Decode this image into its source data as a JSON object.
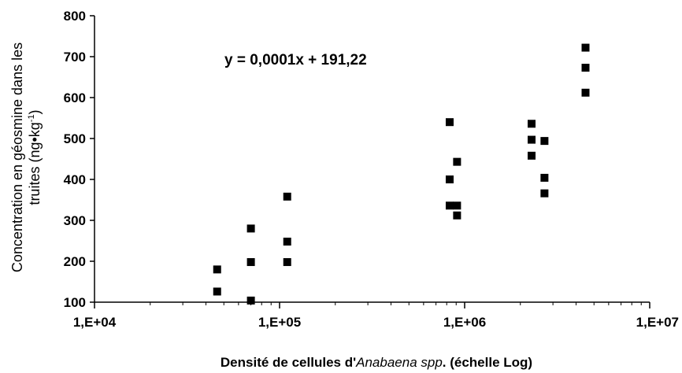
{
  "chart_data": {
    "type": "scatter",
    "x_scale": "log",
    "xlim": [
      10000,
      10000000
    ],
    "ylim": [
      100,
      800
    ],
    "x_ticks": [
      {
        "value": 10000,
        "label": "1,E+04"
      },
      {
        "value": 100000,
        "label": "1,E+05"
      },
      {
        "value": 1000000,
        "label": "1,E+06"
      },
      {
        "value": 10000000,
        "label": "1,E+07"
      }
    ],
    "y_ticks": [
      {
        "value": 100,
        "label": "100"
      },
      {
        "value": 200,
        "label": "200"
      },
      {
        "value": 300,
        "label": "300"
      },
      {
        "value": 400,
        "label": "400"
      },
      {
        "value": 500,
        "label": "500"
      },
      {
        "value": 600,
        "label": "600"
      },
      {
        "value": 700,
        "label": "700"
      },
      {
        "value": 800,
        "label": "800"
      }
    ],
    "grid": false,
    "marker": "square",
    "marker_color": "#000000",
    "annotation": "y = 0,0001x + 191,22",
    "xlabel": {
      "prefix": "Densité de cellules d'",
      "italic": "Anabaena spp",
      "suffix": ". (échelle Log)"
    },
    "ylabel": {
      "line1": "Concentration en géosmine dans les",
      "line2_prefix": "truites (ng•kg",
      "line2_sup": "-1",
      "line2_suffix": ")"
    },
    "points": [
      {
        "x": 46000,
        "y": 180
      },
      {
        "x": 46000,
        "y": 126
      },
      {
        "x": 70000,
        "y": 280
      },
      {
        "x": 70000,
        "y": 198
      },
      {
        "x": 70000,
        "y": 104
      },
      {
        "x": 110000,
        "y": 358
      },
      {
        "x": 110000,
        "y": 248
      },
      {
        "x": 110000,
        "y": 198
      },
      {
        "x": 830000,
        "y": 540
      },
      {
        "x": 830000,
        "y": 400
      },
      {
        "x": 830000,
        "y": 336
      },
      {
        "x": 910000,
        "y": 443
      },
      {
        "x": 910000,
        "y": 336
      },
      {
        "x": 910000,
        "y": 312
      },
      {
        "x": 2300000,
        "y": 536
      },
      {
        "x": 2300000,
        "y": 497
      },
      {
        "x": 2300000,
        "y": 458
      },
      {
        "x": 2700000,
        "y": 494
      },
      {
        "x": 2700000,
        "y": 404
      },
      {
        "x": 2700000,
        "y": 366
      },
      {
        "x": 4500000,
        "y": 722
      },
      {
        "x": 4500000,
        "y": 673
      },
      {
        "x": 4500000,
        "y": 612
      }
    ]
  }
}
